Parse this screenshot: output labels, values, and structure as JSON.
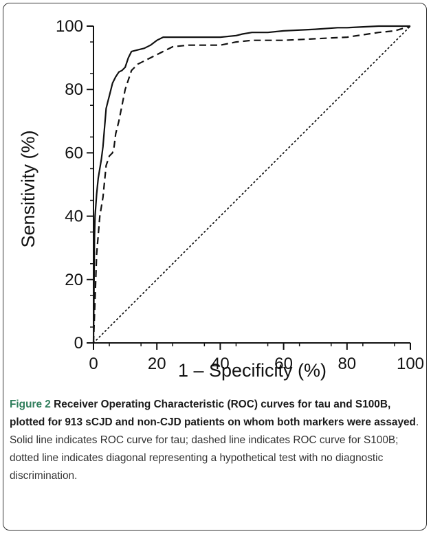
{
  "figure": {
    "caption_label": "Figure 2",
    "caption_title": "Receiver Operating Characteristic (ROC) curves for tau and S100B, plotted for 913 sCJD and non-CJD patients on whom both markers were assayed",
    "caption_body": ". Solid line indicates ROC curve for tau; dashed line indicates ROC curve for S100B; dotted line indicates diagonal representing a hypothetical test with no diagnostic discrimination."
  },
  "chart_data": {
    "type": "line",
    "xlabel": "1 – Specificity (%)",
    "ylabel": "Sensitivity (%)",
    "xlim": [
      0,
      100
    ],
    "ylim": [
      0,
      100
    ],
    "xticks": [
      "0",
      "20",
      "40",
      "60",
      "80",
      "100"
    ],
    "yticks": [
      "0",
      "20",
      "40",
      "60",
      "80",
      "100"
    ],
    "grid": false,
    "legend": "none",
    "series": [
      {
        "style": "solid",
        "x": [
          0,
          0.3,
          0.5,
          1,
          1.5,
          2,
          2.5,
          3,
          3.5,
          4,
          4.5,
          5,
          5.5,
          6,
          7,
          8,
          9,
          10,
          11,
          12,
          14,
          16,
          18,
          20,
          22,
          30,
          40,
          45,
          47,
          50,
          55,
          60,
          70,
          77,
          80,
          90,
          100
        ],
        "y": [
          0,
          33,
          40,
          47,
          52,
          55,
          58,
          62,
          68,
          74,
          76,
          78,
          80,
          82,
          84,
          85.5,
          86,
          87,
          90,
          92,
          92.5,
          93,
          94,
          95.5,
          96.5,
          96.5,
          96.5,
          97,
          97.5,
          98,
          98,
          98.5,
          99,
          99.5,
          99.5,
          100,
          100
        ]
      },
      {
        "style": "dashed",
        "x": [
          0,
          1,
          2,
          3,
          4,
          5,
          6,
          6.5,
          7,
          8,
          9,
          10,
          12,
          14,
          16,
          18,
          20,
          22,
          25,
          30,
          40,
          45,
          50,
          60,
          70,
          80,
          90,
          95,
          100
        ],
        "y": [
          0,
          28,
          40,
          46,
          56,
          59,
          60,
          62,
          66,
          70,
          75,
          80,
          86,
          88,
          89,
          90,
          91,
          92,
          93.5,
          94,
          94,
          95,
          95.5,
          95.5,
          96,
          96.5,
          98,
          98.5,
          100
        ]
      },
      {
        "style": "dotted",
        "x": [
          0,
          100
        ],
        "y": [
          0,
          100
        ]
      }
    ]
  }
}
